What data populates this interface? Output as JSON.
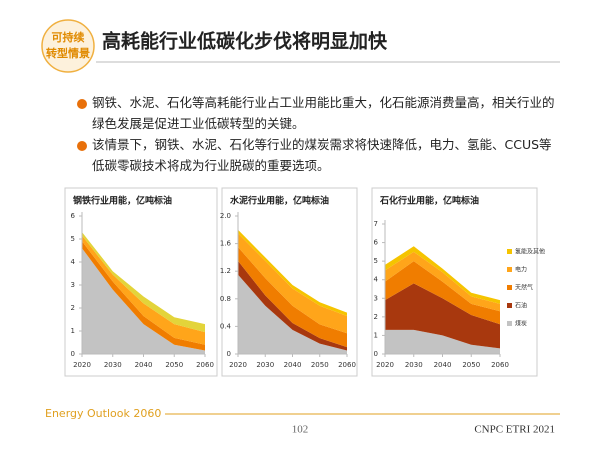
{
  "header": {
    "title": "高耗能行业低碳化步伐将明显加快",
    "logo": [
      "可持续",
      "转型情景"
    ]
  },
  "bullets": [
    "钢铁、水泥、石化等高耗能行业占工业用能比重大，化石能源消费量高，相关行业的绿色发展是促进工业低碳转型的关键。",
    "该情景下，钢铁、水泥、石化等行业的煤炭需求将快速降低，电力、氢能、CCUS等低碳零碳技术将成为行业脱碳的重要选项。"
  ],
  "chart_data": [
    {
      "type": "area",
      "stacked": true,
      "title": "钢铁行业用能，亿吨标油",
      "x": [
        2020,
        2030,
        2040,
        2050,
        2060
      ],
      "xlim": [
        2020,
        2060
      ],
      "xticks": [
        2020,
        2030,
        2040,
        2050,
        2060
      ],
      "ylim": [
        0,
        6
      ],
      "yticks": [
        0,
        1,
        2,
        3,
        4,
        5,
        6
      ],
      "series": [
        {
          "color": "#c3c3c3",
          "values": [
            4.6,
            2.8,
            1.3,
            0.4,
            0.15
          ]
        },
        {
          "color": "#f07d00",
          "values": [
            0.3,
            0.35,
            0.35,
            0.3,
            0.25
          ]
        },
        {
          "color": "#ffa51a",
          "values": [
            0.25,
            0.3,
            0.55,
            0.6,
            0.55
          ]
        },
        {
          "color": "#e3d43a",
          "values": [
            0.15,
            0.15,
            0.3,
            0.3,
            0.35
          ]
        }
      ]
    },
    {
      "type": "area",
      "stacked": true,
      "title": "水泥行业用能，亿吨标油",
      "x": [
        2020,
        2030,
        2040,
        2050,
        2060
      ],
      "xlim": [
        2020,
        2060
      ],
      "xticks": [
        2020,
        2030,
        2040,
        2050,
        2060
      ],
      "ylim": [
        0,
        2
      ],
      "yticks": [
        0,
        0.4,
        0.8,
        1.2,
        1.6,
        {
          "value": 2,
          "label": "2.0"
        }
      ],
      "series": [
        {
          "color": "#c3c3c3",
          "values": [
            1.15,
            0.7,
            0.35,
            0.15,
            0.05
          ]
        },
        {
          "color": "#a8380e",
          "values": [
            0.2,
            0.15,
            0.1,
            0.08,
            0.05
          ]
        },
        {
          "color": "#f07d00",
          "values": [
            0.2,
            0.25,
            0.25,
            0.2,
            0.2
          ]
        },
        {
          "color": "#ffa51a",
          "values": [
            0.2,
            0.25,
            0.25,
            0.27,
            0.25
          ]
        },
        {
          "color": "#f5c400",
          "values": [
            0.05,
            0.05,
            0.05,
            0.05,
            0.05
          ]
        }
      ]
    },
    {
      "type": "area",
      "stacked": true,
      "title": "石化行业用能，亿吨标油",
      "x": [
        2020,
        2030,
        2040,
        2050,
        2060
      ],
      "xlim": [
        2020,
        2060
      ],
      "xticks": [
        2020,
        2030,
        2040,
        2050,
        2060
      ],
      "ylim": [
        0,
        7
      ],
      "yticks": [
        0,
        1,
        2,
        3,
        4,
        5,
        6,
        7
      ],
      "series": [
        {
          "name": "煤炭",
          "color": "#c3c3c3",
          "values": [
            1.3,
            1.3,
            1.0,
            0.5,
            0.3
          ]
        },
        {
          "name": "石油",
          "color": "#a8380e",
          "values": [
            1.6,
            2.5,
            2.0,
            1.6,
            1.3
          ]
        },
        {
          "name": "天然气",
          "color": "#f07d00",
          "values": [
            1.0,
            1.2,
            0.9,
            0.6,
            0.7
          ]
        },
        {
          "name": "电力",
          "color": "#ffa51a",
          "values": [
            0.6,
            0.5,
            0.5,
            0.4,
            0.4
          ]
        },
        {
          "name": "氢能及其他",
          "color": "#f5c400",
          "values": [
            0.3,
            0.3,
            0.2,
            0.2,
            0.2
          ]
        }
      ]
    }
  ],
  "footer": {
    "left": "Energy Outlook 2060",
    "page": "102",
    "right": "CNPC ETRI 2021"
  }
}
